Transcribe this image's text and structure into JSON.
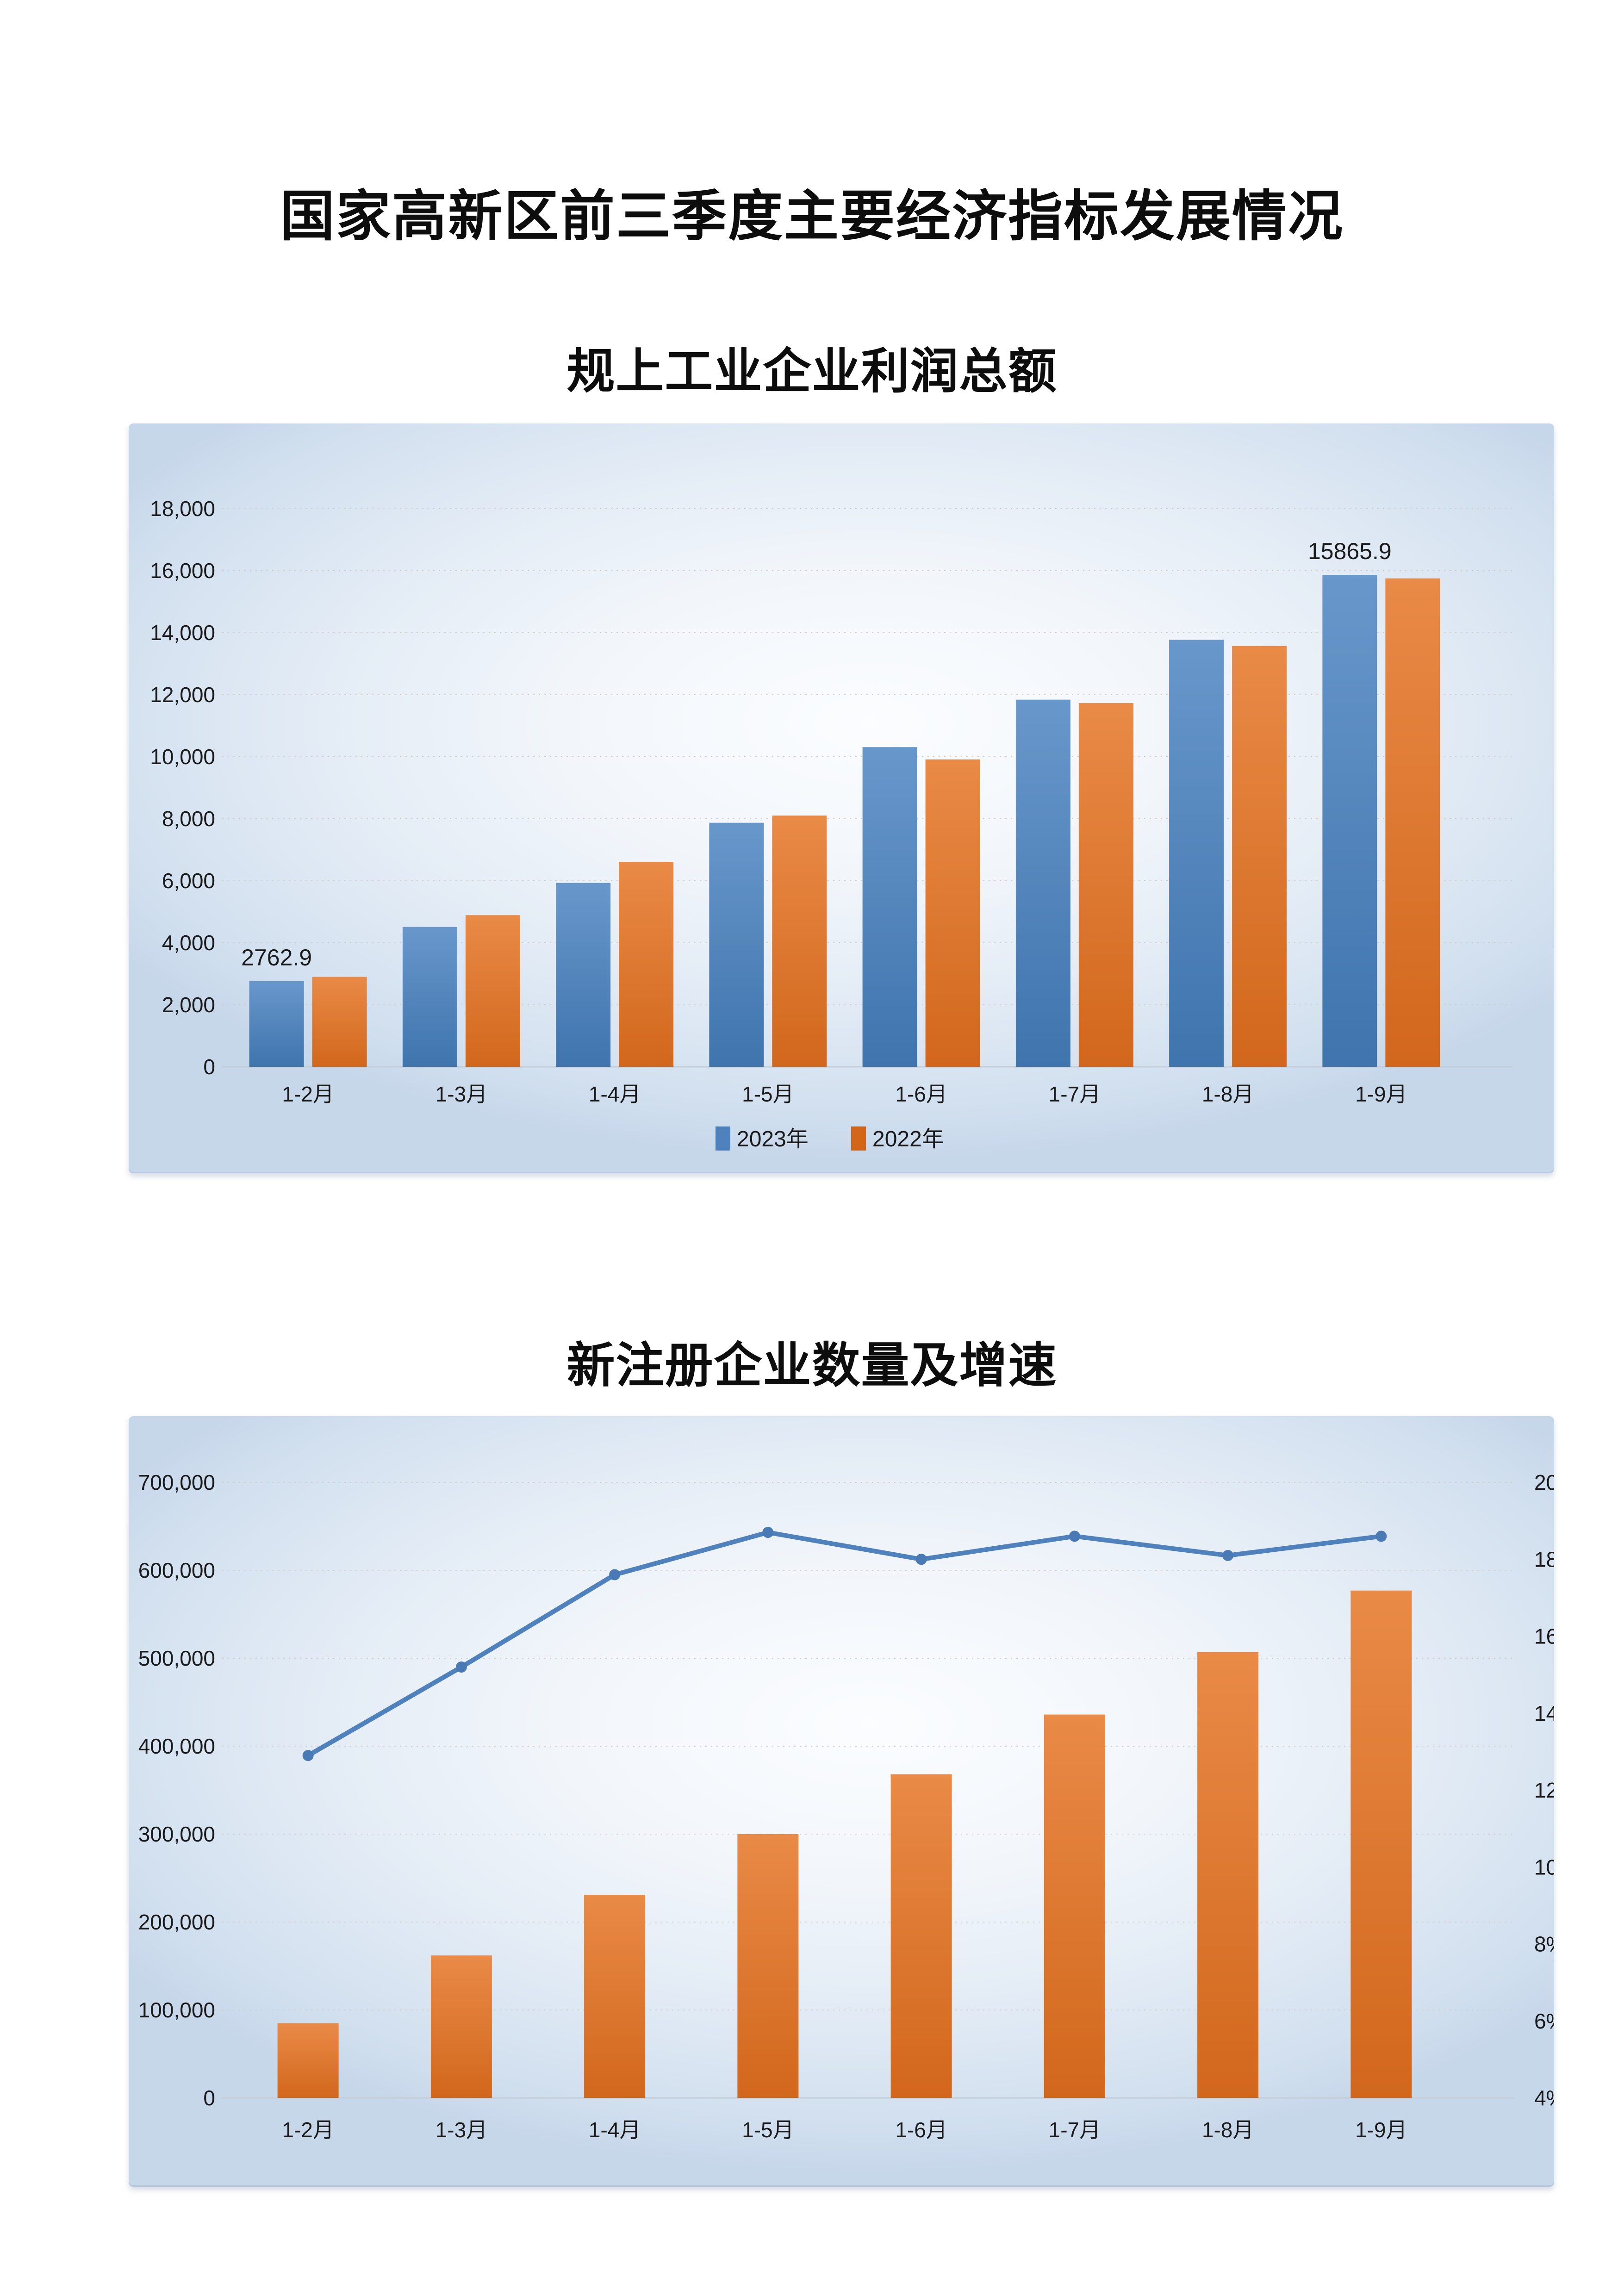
{
  "page": {
    "title": "国家高新区前三季度主要经济指标发展情况"
  },
  "colors": {
    "bar_blue_top": "#6897cb",
    "bar_blue_bottom": "#3f74ad",
    "bar_orange_top": "#e98a47",
    "bar_orange_bottom": "#d2671c",
    "line_blue": "#4f81bd",
    "marker_blue": "#4a7ab5",
    "grid": "#cfc8bf",
    "axis": "#c4cdd8",
    "text": "#1a1a1a"
  },
  "chart_data": [
    {
      "type": "bar",
      "title": "规上工业企业利润总额",
      "categories": [
        "1-2月",
        "1-3月",
        "1-4月",
        "1-5月",
        "1-6月",
        "1-7月",
        "1-8月",
        "1-9月"
      ],
      "series": [
        {
          "name": "2023年",
          "color": "blue",
          "values": [
            2762.9,
            4510,
            5930,
            7870,
            10310,
            11840,
            13770,
            15865.9
          ]
        },
        {
          "name": "2022年",
          "color": "orange",
          "values": [
            2900,
            4890,
            6610,
            8100,
            9910,
            11730,
            13570,
            15750
          ]
        }
      ],
      "data_labels": [
        {
          "series": 0,
          "index": 0,
          "text": "2762.9"
        },
        {
          "series": 0,
          "index": 7,
          "text": "15865.9"
        }
      ],
      "ylim": [
        0,
        18000
      ],
      "ytick_step": 2000,
      "grid": true,
      "legend_position": "bottom"
    },
    {
      "type": "combo",
      "title": "新注册企业数量及增速",
      "categories": [
        "1-2月",
        "1-3月",
        "1-4月",
        "1-5月",
        "1-6月",
        "1-7月",
        "1-8月",
        "1-9月"
      ],
      "bar_series": {
        "name": "新注册企业数量",
        "color": "orange",
        "values": [
          85000,
          162000,
          231000,
          300000,
          368000,
          436000,
          507000,
          577000
        ]
      },
      "line_series": {
        "name": "增速",
        "color": "blue",
        "values_percent": [
          12.9,
          15.2,
          17.6,
          18.7,
          18.0,
          18.6,
          18.1,
          18.6
        ]
      },
      "ylim_left": [
        0,
        700000
      ],
      "ytick_step_left": 100000,
      "ylim_right": [
        4,
        20
      ],
      "ytick_step_right": 2,
      "grid": true,
      "legend_position": "none"
    }
  ]
}
